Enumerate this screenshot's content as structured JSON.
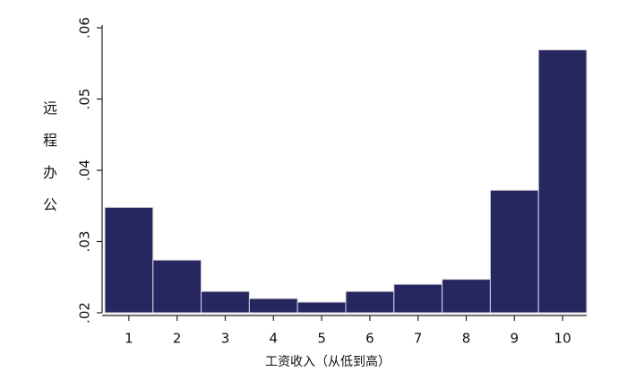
{
  "chart_data": {
    "type": "bar",
    "categories": [
      "1",
      "2",
      "3",
      "4",
      "5",
      "6",
      "7",
      "8",
      "9",
      "10"
    ],
    "values": [
      0.0348,
      0.0274,
      0.023,
      0.022,
      0.0215,
      0.023,
      0.024,
      0.0247,
      0.0372,
      0.0569
    ],
    "color": "#27275f",
    "ylim": [
      0.02,
      0.06
    ],
    "yticks": [
      {
        "value": 0.02,
        "label": ".02"
      },
      {
        "value": 0.03,
        "label": ".03"
      },
      {
        "value": 0.04,
        "label": ".04"
      },
      {
        "value": 0.05,
        "label": ".05"
      },
      {
        "value": 0.06,
        "label": ".06"
      }
    ],
    "ylabel": "远程办公",
    "xlabel": "工资收入（从低到高）",
    "grid": false
  }
}
